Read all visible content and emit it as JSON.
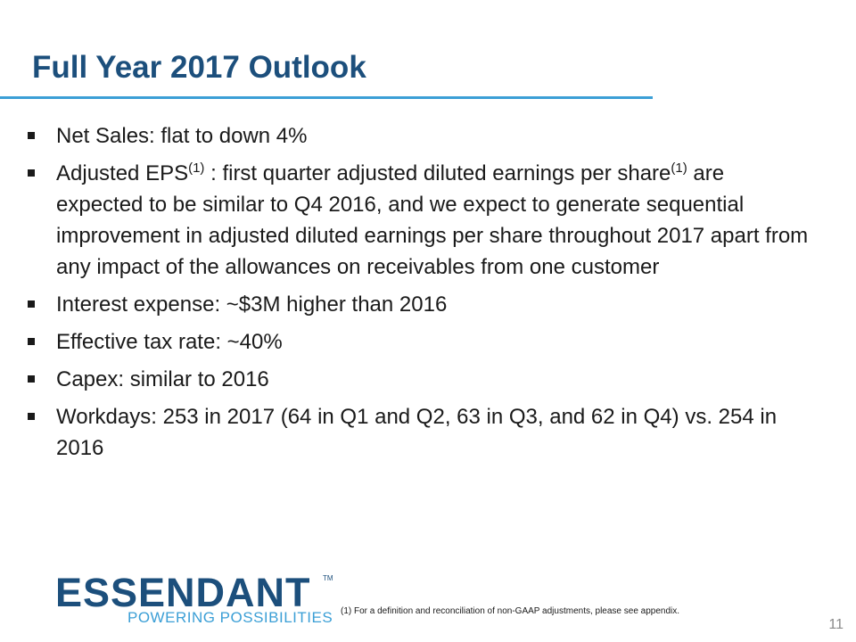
{
  "slide": {
    "title": "Full Year 2017 Outlook",
    "bullets": [
      {
        "text": "Net Sales:  flat to down 4%"
      },
      {
        "part1": "Adjusted EPS",
        "sup1": "(1)",
        "part2": " :  first quarter adjusted diluted earnings per share",
        "sup2": "(1)",
        "part3": " are expected to be similar to Q4 2016, and we expect to generate sequential improvement in adjusted diluted earnings per share throughout 2017 apart from any impact of the allowances on receivables from one customer"
      },
      {
        "text": "Interest expense: ~$3M higher than 2016"
      },
      {
        "text": "Effective tax rate: ~40%"
      },
      {
        "text": "Capex: similar to 2016"
      },
      {
        "text": "Workdays: 253 in 2017 (64 in Q1 and Q2, 63 in Q3, and 62 in Q4) vs. 254 in 2016"
      }
    ],
    "footnote": "(1)  For a definition and reconciliation of non-GAAP adjustments, please see appendix.",
    "page_number": "11"
  },
  "logo": {
    "name": "ESSENDANT",
    "trademark": "TM",
    "tagline": "POWERING POSSIBILITIES"
  },
  "colors": {
    "title": "#1c4f7c",
    "accent": "#3b9fd6",
    "body_text": "#1a1a1a"
  }
}
